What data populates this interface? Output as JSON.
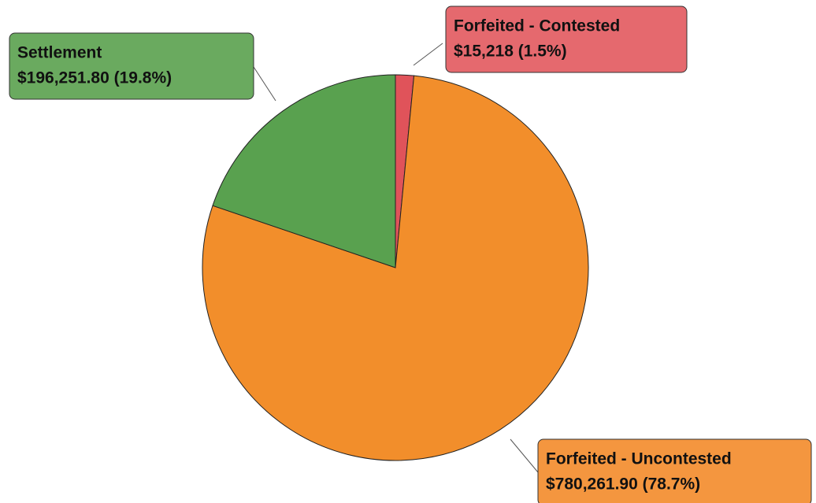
{
  "chart_data": {
    "type": "pie",
    "categories": [
      "Forfeited - Contested",
      "Forfeited - Uncontested",
      "Settlement"
    ],
    "values": [
      15218,
      780261.9,
      196251.8
    ],
    "value_labels": [
      "$15,218 (1.5%)",
      "$780,261.90 (78.7%)",
      "$196,251.80 (19.8%)"
    ],
    "colors": [
      "#e0535a",
      "#f28e2b",
      "#59a14f"
    ],
    "label_colors": [
      "#e5696e",
      "#f4963f",
      "#6aaa5f"
    ]
  }
}
